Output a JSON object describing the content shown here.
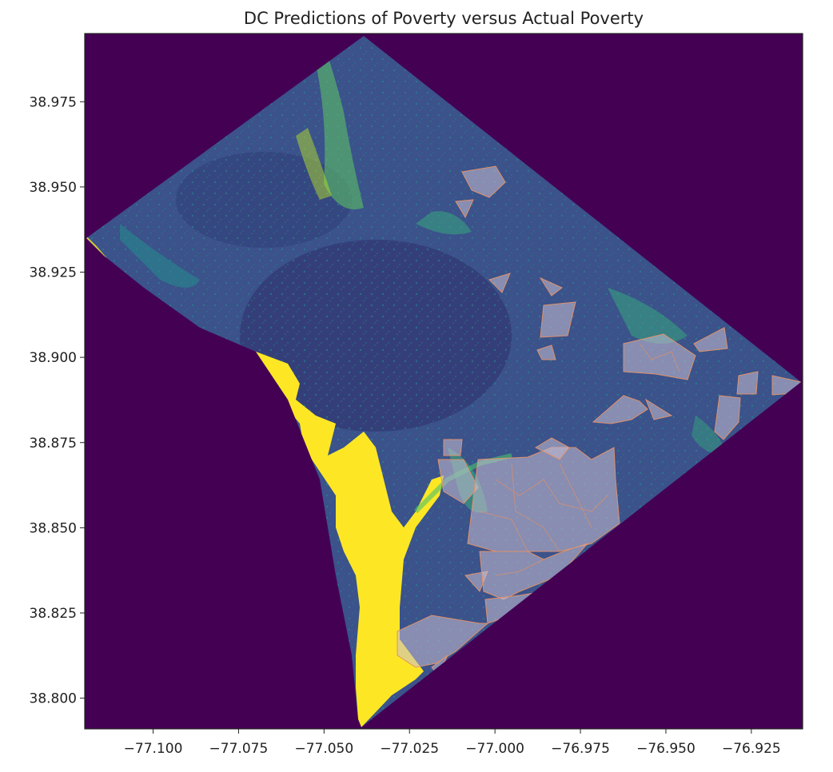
{
  "title": "DC Predictions of Poverty versus Actual Poverty",
  "chart_data": {
    "type": "heatmap",
    "title": "DC Predictions of Poverty versus Actual Poverty",
    "xlabel": "",
    "ylabel": "",
    "xlim": [
      -77.12,
      -76.91
    ],
    "ylim": [
      38.791,
      38.995
    ],
    "x_ticks": [
      -77.1,
      -77.075,
      -77.05,
      -77.025,
      -77.0,
      -76.975,
      -76.95,
      -76.925
    ],
    "x_tick_labels": [
      "−77.100",
      "−77.075",
      "−77.050",
      "−77.025",
      "−77.000",
      "−76.975",
      "−76.950",
      "−76.925"
    ],
    "y_ticks": [
      38.8,
      38.825,
      38.85,
      38.875,
      38.9,
      38.925,
      38.95,
      38.975
    ],
    "y_tick_labels": [
      "38.800",
      "38.825",
      "38.850",
      "38.875",
      "38.900",
      "38.925",
      "38.950",
      "38.975"
    ],
    "grid": false,
    "colormap": "viridis",
    "colors": {
      "background": "#440154",
      "raster_base": "#3b528b",
      "raster_dark": "#30306e",
      "raster_highlight": "#5ec962",
      "river": "#fde725",
      "poverty_fill": "#c8bed2",
      "poverty_edge": "#e0906a"
    },
    "overlay": "actual poverty census tracts (translucent polygons)"
  }
}
